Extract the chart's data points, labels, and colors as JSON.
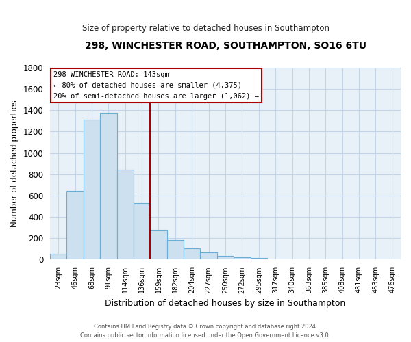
{
  "title": "298, WINCHESTER ROAD, SOUTHAMPTON, SO16 6TU",
  "subtitle": "Size of property relative to detached houses in Southampton",
  "xlabel": "Distribution of detached houses by size in Southampton",
  "ylabel": "Number of detached properties",
  "bar_color": "#cce0f0",
  "bar_edge_color": "#6aaed6",
  "plot_bg_color": "#e8f0f8",
  "grid_color": "#c5d5e8",
  "categories": [
    "23sqm",
    "46sqm",
    "68sqm",
    "91sqm",
    "114sqm",
    "136sqm",
    "159sqm",
    "182sqm",
    "204sqm",
    "227sqm",
    "250sqm",
    "272sqm",
    "295sqm",
    "317sqm",
    "340sqm",
    "363sqm",
    "385sqm",
    "408sqm",
    "431sqm",
    "453sqm",
    "476sqm"
  ],
  "values": [
    55,
    645,
    1310,
    1375,
    840,
    530,
    280,
    180,
    105,
    68,
    35,
    25,
    15,
    5,
    5,
    5,
    5,
    5,
    0,
    0,
    0
  ],
  "ylim": [
    0,
    1800
  ],
  "yticks": [
    0,
    200,
    400,
    600,
    800,
    1000,
    1200,
    1400,
    1600,
    1800
  ],
  "vline_x": 5.5,
  "vline_color": "#aa0000",
  "annotation_line1": "298 WINCHESTER ROAD: 143sqm",
  "annotation_line2": "← 80% of detached houses are smaller (4,375)",
  "annotation_line3": "20% of semi-detached houses are larger (1,062) →",
  "footer_line1": "Contains HM Land Registry data © Crown copyright and database right 2024.",
  "footer_line2": "Contains public sector information licensed under the Open Government Licence v3.0.",
  "background_color": "#ffffff"
}
